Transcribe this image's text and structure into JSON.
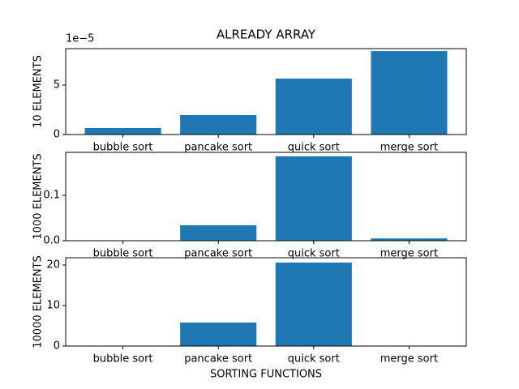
{
  "chart_data": [
    {
      "type": "bar",
      "title": "ALREADY ARRAY",
      "ylabel": "10 ELEMENTS",
      "axis_offset_label": "1e−5",
      "categories": [
        "bubble sort",
        "pancake sort",
        "quick sort",
        "merge sort"
      ],
      "values": [
        0.66,
        1.97,
        5.66,
        8.44
      ],
      "color": "#1f77b4",
      "ylim": [
        0,
        8.69
      ],
      "yticks": [
        0,
        5
      ]
    },
    {
      "type": "bar",
      "ylabel": "1000 ELEMENTS",
      "categories": [
        "bubble sort",
        "pancake sort",
        "quick sort",
        "merge sort"
      ],
      "values": [
        0.0003,
        0.034,
        0.186,
        0.005
      ],
      "color": "#1f77b4",
      "ylim": [
        0,
        0.1946
      ],
      "yticks": [
        {
          "value": 0,
          "label": "0.0"
        },
        0.1
      ]
    },
    {
      "type": "bar",
      "ylabel": "10000 ELEMENTS",
      "xlabel": "SORTING FUNCTIONS",
      "categories": [
        "bubble sort",
        "pancake sort",
        "quick sort",
        "merge sort"
      ],
      "values": [
        0.02,
        5.8,
        20.6,
        0.02
      ],
      "color": "#1f77b4",
      "ylim": [
        0,
        21.8
      ],
      "yticks": [
        0,
        10,
        20
      ]
    }
  ]
}
